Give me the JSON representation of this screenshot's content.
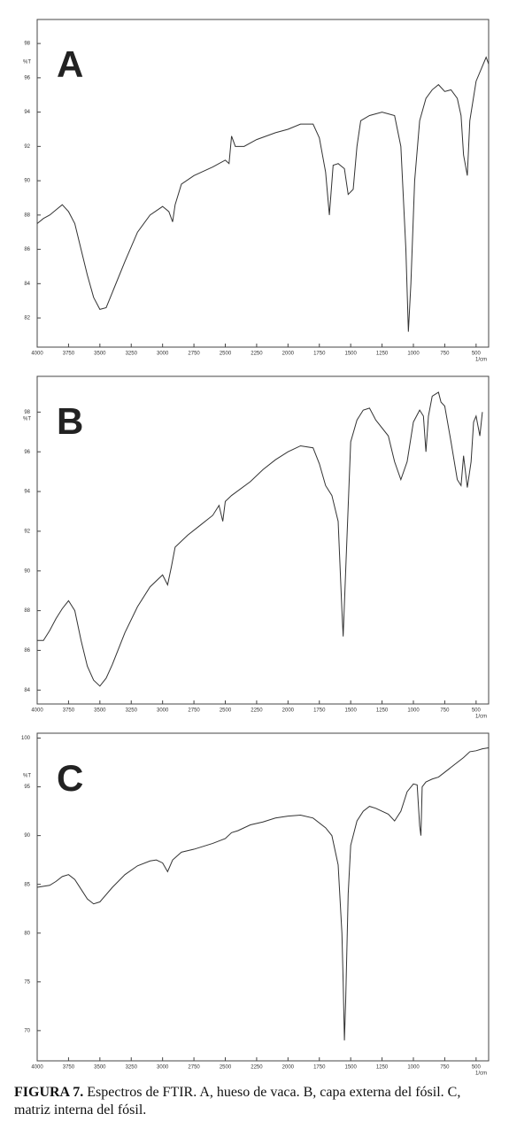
{
  "chart_data": [
    {
      "type": "line",
      "panel_label": "A",
      "ylabel": "%T",
      "xlabel": "1/cm",
      "xlim": [
        4000,
        400
      ],
      "xticks": [
        4000,
        3750,
        3500,
        3250,
        3000,
        2750,
        2500,
        2250,
        2000,
        1750,
        1500,
        1250,
        1000,
        750,
        500
      ],
      "ylim": [
        80.3,
        99.4
      ],
      "yticks": [
        82,
        84,
        86,
        88,
        90,
        92,
        94,
        96,
        98
      ],
      "series": [
        {
          "color": "#333333",
          "x": [
            4000,
            3950,
            3900,
            3850,
            3800,
            3750,
            3700,
            3650,
            3600,
            3550,
            3500,
            3450,
            3400,
            3300,
            3200,
            3100,
            3000,
            2950,
            2920,
            2900,
            2850,
            2750,
            2600,
            2500,
            2470,
            2450,
            2420,
            2350,
            2250,
            2100,
            2000,
            1900,
            1800,
            1750,
            1700,
            1670,
            1640,
            1600,
            1550,
            1520,
            1480,
            1450,
            1420,
            1350,
            1250,
            1150,
            1100,
            1060,
            1040,
            1020,
            990,
            950,
            900,
            850,
            800,
            750,
            700,
            650,
            620,
            600,
            570,
            550,
            500,
            460,
            420,
            400
          ],
          "values": [
            87.5,
            87.8,
            88,
            88.3,
            88.6,
            88.2,
            87.5,
            86,
            84.5,
            83.2,
            82.5,
            82.6,
            83.5,
            85.3,
            87,
            88,
            88.5,
            88.2,
            87.6,
            88.6,
            89.8,
            90.3,
            90.8,
            91.2,
            91.0,
            92.6,
            92.0,
            92.0,
            92.4,
            92.8,
            93.0,
            93.3,
            93.3,
            92.5,
            90.5,
            88.0,
            90.9,
            91.0,
            90.7,
            89.2,
            89.5,
            92.0,
            93.5,
            93.8,
            94.0,
            93.8,
            92,
            86,
            81.2,
            84,
            90,
            93.5,
            94.8,
            95.3,
            95.6,
            95.2,
            95.3,
            94.8,
            93.8,
            91.5,
            90.3,
            93.5,
            95.8,
            96.5,
            97.2,
            96.8
          ]
        }
      ]
    },
    {
      "type": "line",
      "panel_label": "B",
      "ylabel": "%T",
      "xlabel": "1/cm",
      "xlim": [
        4000,
        400
      ],
      "xticks": [
        4000,
        3750,
        3500,
        3250,
        3000,
        2750,
        2500,
        2250,
        2000,
        1750,
        1500,
        1250,
        1000,
        750,
        500
      ],
      "ylim": [
        83.3,
        99.8
      ],
      "yticks": [
        84,
        86,
        88,
        90,
        92,
        94,
        96,
        98
      ],
      "series": [
        {
          "color": "#333333",
          "x": [
            4000,
            3950,
            3900,
            3850,
            3800,
            3750,
            3700,
            3650,
            3600,
            3550,
            3500,
            3450,
            3400,
            3300,
            3200,
            3100,
            3000,
            2960,
            2930,
            2900,
            2800,
            2700,
            2600,
            2550,
            2520,
            2500,
            2450,
            2300,
            2200,
            2100,
            2000,
            1900,
            1800,
            1750,
            1700,
            1650,
            1600,
            1570,
            1560,
            1540,
            1500,
            1450,
            1400,
            1350,
            1300,
            1200,
            1150,
            1100,
            1050,
            1000,
            950,
            920,
            900,
            880,
            850,
            800,
            780,
            750,
            700,
            650,
            620,
            600,
            570,
            540,
            520,
            500,
            470,
            450
          ],
          "values": [
            86.5,
            86.5,
            87,
            87.6,
            88.1,
            88.5,
            88,
            86.5,
            85.2,
            84.5,
            84.2,
            84.6,
            85.3,
            86.9,
            88.2,
            89.2,
            89.8,
            89.3,
            90.2,
            91.2,
            91.8,
            92.3,
            92.8,
            93.3,
            92.5,
            93.5,
            93.8,
            94.5,
            95.1,
            95.6,
            96.0,
            96.3,
            96.2,
            95.4,
            94.3,
            93.8,
            92.5,
            88,
            86.7,
            90,
            96.5,
            97.6,
            98.1,
            98.2,
            97.6,
            96.8,
            95.5,
            94.6,
            95.5,
            97.5,
            98.1,
            97.8,
            96.0,
            97.8,
            98.8,
            99.0,
            98.5,
            98.3,
            96.5,
            94.6,
            94.3,
            95.8,
            94.2,
            95.5,
            97.5,
            97.8,
            96.8,
            98.0
          ]
        }
      ]
    },
    {
      "type": "line",
      "panel_label": "C",
      "ylabel": "%T",
      "xlabel": "1/cm",
      "xlim": [
        4000,
        400
      ],
      "xticks": [
        4000,
        3750,
        3500,
        3250,
        3000,
        2750,
        2500,
        2250,
        2000,
        1750,
        1500,
        1250,
        1000,
        750,
        500
      ],
      "ylim": [
        66.9,
        100.5
      ],
      "yticks": [
        70,
        75,
        80,
        85,
        90,
        95,
        100
      ],
      "series": [
        {
          "color": "#333333",
          "x": [
            4000,
            3900,
            3850,
            3800,
            3750,
            3700,
            3650,
            3600,
            3550,
            3500,
            3400,
            3300,
            3200,
            3100,
            3050,
            3000,
            2960,
            2920,
            2850,
            2750,
            2600,
            2500,
            2450,
            2400,
            2300,
            2200,
            2100,
            2000,
            1900,
            1800,
            1700,
            1650,
            1600,
            1570,
            1560,
            1550,
            1540,
            1520,
            1500,
            1450,
            1400,
            1350,
            1300,
            1200,
            1150,
            1100,
            1050,
            1000,
            970,
            950,
            940,
            930,
            900,
            850,
            800,
            750,
            700,
            650,
            600,
            550,
            500,
            450,
            400
          ],
          "values": [
            84.7,
            84.9,
            85.3,
            85.8,
            86,
            85.5,
            84.5,
            83.5,
            83,
            83.2,
            84.7,
            86,
            86.9,
            87.4,
            87.5,
            87.2,
            86.3,
            87.5,
            88.3,
            88.6,
            89.2,
            89.7,
            90.3,
            90.5,
            91.1,
            91.4,
            91.8,
            92.0,
            92.1,
            91.8,
            90.8,
            90,
            87,
            80,
            75,
            69,
            73,
            84,
            89,
            91.5,
            92.5,
            93.0,
            92.8,
            92.2,
            91.5,
            92.5,
            94.5,
            95.3,
            95.2,
            91,
            90,
            95,
            95.5,
            95.8,
            96.0,
            96.5,
            97.0,
            97.5,
            98.0,
            98.6,
            98.7,
            98.9,
            99.0
          ]
        }
      ]
    }
  ],
  "caption": {
    "label": "FIGURA 7.",
    "text": "Espectros de FTIR. A, hueso de vaca. B, capa externa del fósil. C, matriz interna del fósil."
  }
}
